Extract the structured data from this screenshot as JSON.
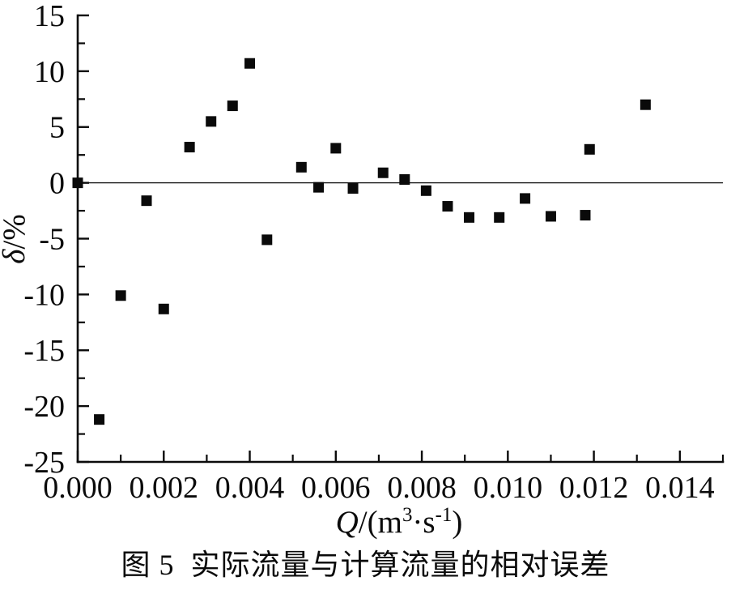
{
  "chart_data": {
    "type": "scatter",
    "title": "图 5  实际流量与计算流量的相对误差",
    "xlabel_parts": [
      {
        "t": "Q",
        "i": 1
      },
      {
        "t": "/(m"
      },
      {
        "t": "3",
        "s": 1
      },
      {
        "t": "·s"
      },
      {
        "t": "-1",
        "s": 1
      },
      {
        "t": ")"
      }
    ],
    "ylabel_parts": [
      {
        "t": "δ",
        "i": 1
      },
      {
        "t": "/%"
      }
    ],
    "xlim": [
      0,
      0.015
    ],
    "ylim": [
      -25,
      15
    ],
    "x_major_ticks": [
      0.0,
      0.002,
      0.004,
      0.006,
      0.008,
      0.01,
      0.012,
      0.014
    ],
    "x_tick_labels": [
      "0.000",
      "0.002",
      "0.004",
      "0.006",
      "0.008",
      "0.010",
      "0.012",
      "0.014"
    ],
    "x_minor_ticks": [
      0.001,
      0.003,
      0.005,
      0.007,
      0.009,
      0.011,
      0.013,
      0.015
    ],
    "y_major_ticks": [
      15,
      10,
      5,
      0,
      -5,
      -10,
      -15,
      -20,
      -25
    ],
    "y_tick_labels": [
      "15",
      "10",
      "5",
      "0",
      "-5",
      "-10",
      "-15",
      "-20",
      "-25"
    ],
    "y_minor_ticks": [
      12.5,
      7.5,
      2.5,
      -2.5,
      -7.5,
      -12.5,
      -17.5,
      -22.5
    ],
    "zero_line_y": 0,
    "grid": false,
    "legend": null,
    "marker": "square",
    "marker_color": "#0a0a0a",
    "marker_size_px": 13,
    "points": [
      [
        0.0,
        0.0
      ],
      [
        0.0005,
        -21.2
      ],
      [
        0.001,
        -10.1
      ],
      [
        0.0016,
        -1.6
      ],
      [
        0.002,
        -11.3
      ],
      [
        0.0026,
        3.2
      ],
      [
        0.0031,
        5.5
      ],
      [
        0.0036,
        6.9
      ],
      [
        0.004,
        10.7
      ],
      [
        0.0044,
        -5.1
      ],
      [
        0.0052,
        1.4
      ],
      [
        0.0056,
        -0.4
      ],
      [
        0.006,
        3.1
      ],
      [
        0.0064,
        -0.5
      ],
      [
        0.0071,
        0.9
      ],
      [
        0.0076,
        0.3
      ],
      [
        0.0081,
        -0.7
      ],
      [
        0.0086,
        -2.1
      ],
      [
        0.0091,
        -3.1
      ],
      [
        0.0098,
        -3.1
      ],
      [
        0.0104,
        -1.4
      ],
      [
        0.011,
        -3.0
      ],
      [
        0.0118,
        -2.9
      ],
      [
        0.0119,
        3.0
      ],
      [
        0.0132,
        7.0
      ]
    ]
  }
}
